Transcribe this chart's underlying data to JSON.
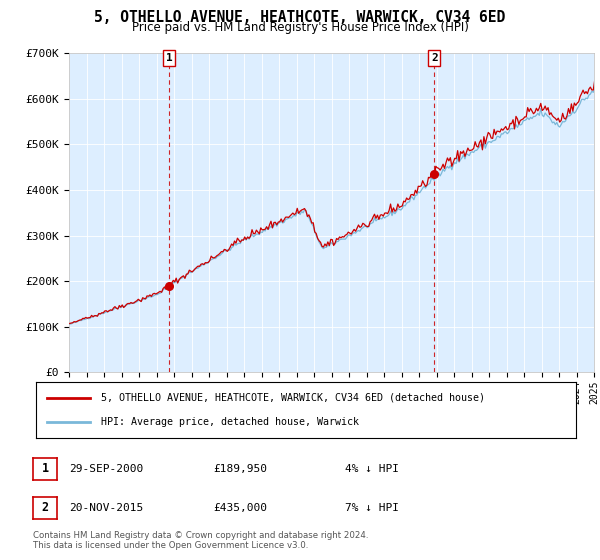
{
  "title": "5, OTHELLO AVENUE, HEATHCOTE, WARWICK, CV34 6ED",
  "subtitle": "Price paid vs. HM Land Registry's House Price Index (HPI)",
  "legend_line1": "5, OTHELLO AVENUE, HEATHCOTE, WARWICK, CV34 6ED (detached house)",
  "legend_line2": "HPI: Average price, detached house, Warwick",
  "marker1_date": "29-SEP-2000",
  "marker1_price": 189950,
  "marker1_price_str": "£189,950",
  "marker1_label": "4% ↓ HPI",
  "marker2_date": "20-NOV-2015",
  "marker2_price": 435000,
  "marker2_price_str": "£435,000",
  "marker2_label": "7% ↓ HPI",
  "footer1": "Contains HM Land Registry data © Crown copyright and database right 2024.",
  "footer2": "This data is licensed under the Open Government Licence v3.0.",
  "hpi_color": "#7ab8d9",
  "price_color": "#cc0000",
  "marker_color": "#cc0000",
  "vline_color": "#cc0000",
  "plot_bg_color": "#ddeeff",
  "ylim": [
    0,
    700000
  ],
  "yticks": [
    0,
    100000,
    200000,
    300000,
    400000,
    500000,
    600000,
    700000
  ],
  "ytick_labels": [
    "£0",
    "£100K",
    "£200K",
    "£300K",
    "£400K",
    "£500K",
    "£600K",
    "£700K"
  ],
  "xstart": 1995,
  "xend": 2025,
  "sale1_year": 2000,
  "sale1_month": 9,
  "sale1_price": 189950,
  "sale2_year": 2015,
  "sale2_month": 11,
  "sale2_price": 435000
}
